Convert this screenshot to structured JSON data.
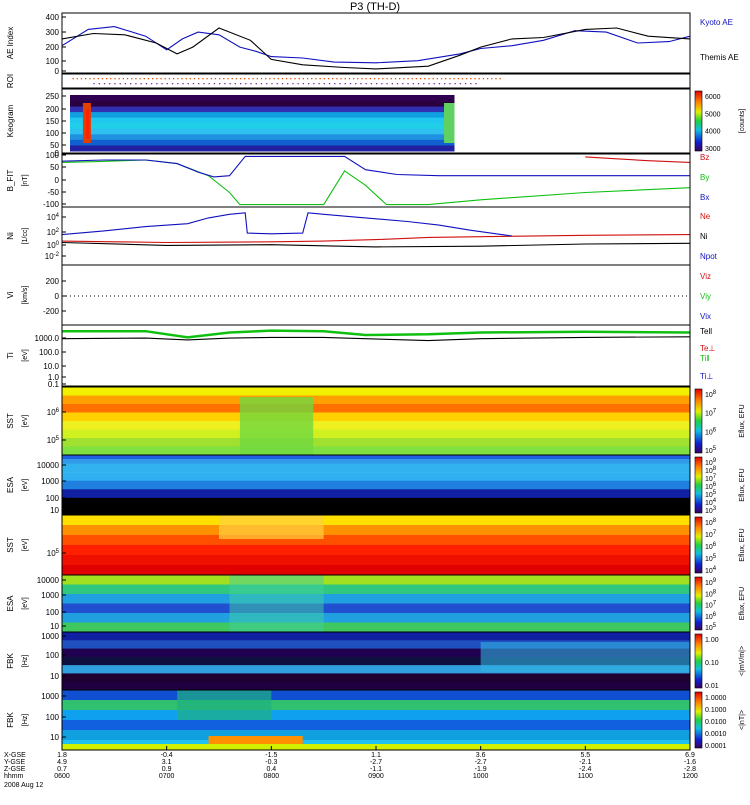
{
  "chart_data": {
    "type": "stacked-timeseries",
    "title": "P3 (TH-D)",
    "date_label": "2008 Aug 12",
    "time_axis": {
      "range_hours": [
        6,
        12
      ],
      "ticks": [
        "0600",
        "0700",
        "0800",
        "0900",
        "1000",
        "1100",
        "1200"
      ],
      "coord_rows": [
        {
          "label": "X-GSE",
          "values": [
            "1.8",
            "-0.4",
            "-1.5",
            "1.1",
            "3.6",
            "5.5",
            "6.9"
          ]
        },
        {
          "label": "Y-GSE",
          "values": [
            "4.9",
            "3.1",
            "-0.3",
            "-2.7",
            "-2.7",
            "-2.1",
            "-1.6"
          ]
        },
        {
          "label": "Z-GSE",
          "values": [
            "0.7",
            "0.9",
            "0.4",
            "-1.1",
            "-1.9",
            "-2.4",
            "-2.8"
          ]
        },
        {
          "label": "hhmm",
          "values": [
            "0600",
            "0700",
            "0800",
            "0900",
            "1000",
            "1100",
            "1200"
          ]
        }
      ]
    },
    "panels": [
      {
        "id": "ae",
        "ylabel": "AE Index",
        "yticks": [
          "400",
          "300",
          "200",
          "100",
          "0"
        ],
        "series": [
          {
            "name": "Kyoto AE",
            "color": "#1010c0",
            "t": [
              6.0,
              6.25,
              6.5,
              6.8,
              7.0,
              7.15,
              7.3,
              7.5,
              7.7,
              7.85,
              8.0,
              8.3,
              8.6,
              9.0,
              9.4,
              9.8,
              10.0,
              10.3,
              10.6,
              10.9,
              11.2,
              11.5,
              11.8,
              12.0
            ],
            "v": [
              180,
              300,
              320,
              250,
              150,
              230,
              280,
              260,
              170,
              140,
              100,
              90,
              60,
              55,
              70,
              120,
              160,
              180,
              220,
              290,
              280,
              200,
              210,
              250
            ]
          },
          {
            "name": "Themis AE",
            "color": "#000000",
            "t": [
              6.0,
              6.3,
              6.6,
              6.9,
              7.1,
              7.25,
              7.5,
              7.8,
              8.0,
              8.3,
              8.7,
              9.0,
              9.5,
              9.8,
              10.0,
              10.3,
              10.6,
              11.0,
              11.3,
              11.6,
              12.0
            ],
            "v": [
              230,
              270,
              260,
              200,
              120,
              170,
              310,
              220,
              80,
              40,
              20,
              10,
              30,
              110,
              170,
              230,
              240,
              300,
              310,
              250,
              230
            ]
          }
        ]
      },
      {
        "id": "roi",
        "ylabel": "ROI"
      },
      {
        "id": "keogram",
        "ylabel": "Keogram",
        "yticks": [
          "250",
          "200",
          "150",
          "100",
          "50",
          "0"
        ],
        "colorbar": {
          "label": "[counts]",
          "ticks": [
            "6000",
            "5000",
            "4000",
            "3000"
          ]
        }
      },
      {
        "id": "bfit",
        "ylabel": "B_FIT",
        "unit": "[nT]",
        "yticks": [
          "100",
          "50",
          "0",
          "-50",
          "-100"
        ],
        "series": [
          {
            "name": "Bz",
            "color": "#d01010",
            "t": [
              11.0,
              11.3,
              11.6,
              12.0
            ],
            "v": [
              98,
              90,
              82,
              75
            ]
          },
          {
            "name": "By",
            "color": "#10c010",
            "t": [
              6.0,
              6.3,
              6.8,
              7.1,
              7.4,
              7.6,
              7.7,
              8.5,
              8.7,
              8.9,
              9.1,
              9.5,
              10.0,
              11.0,
              12.0
            ],
            "v": [
              75,
              78,
              85,
              70,
              20,
              -50,
              -100,
              -100,
              40,
              -20,
              -100,
              -100,
              -80,
              -50,
              -30
            ]
          },
          {
            "name": "Bx",
            "color": "#1010c0",
            "t": [
              6.0,
              6.4,
              6.8,
              7.1,
              7.3,
              7.45,
              7.6,
              7.75,
              8.5,
              8.7,
              8.9,
              9.2,
              9.6,
              10.0,
              12.0
            ],
            "v": [
              80,
              85,
              85,
              70,
              35,
              15,
              20,
              100,
              100,
              100,
              45,
              25,
              20,
              20,
              20
            ]
          }
        ]
      },
      {
        "id": "ni",
        "ylabel": "Ni",
        "unit": "[1/cc]",
        "yticks": [
          "10^4",
          "10^2",
          "10^0",
          "10^-2"
        ],
        "series": [
          {
            "name": "Ne",
            "color": "#d01010",
            "t": [
              6.0,
              6.5,
              7.0,
              7.5,
              8.0,
              8.5,
              9.0,
              9.5,
              10.0,
              11.0,
              12.0
            ],
            "v": [
              0.3,
              0.2,
              0.1,
              0.15,
              0.2,
              0.3,
              0.5,
              0.8,
              0.9,
              1.1,
              1.2
            ]
          },
          {
            "name": "Ni",
            "color": "#1010c0",
            "t": [
              6.0,
              6.4,
              6.8,
              7.2,
              7.4,
              7.6,
              7.75,
              7.77,
              8.0,
              8.3,
              8.35,
              8.5,
              8.9,
              9.3,
              9.6,
              9.9,
              10.2,
              10.3
            ],
            "v": [
              1.2,
              1.7,
              2.3,
              2.7,
              3.5,
              4.0,
              4.2,
              1.4,
              1.3,
              1.4,
              4.2,
              4.0,
              3.5,
              3.0,
              2.5,
              1.8,
              1.2,
              1.0
            ]
          },
          {
            "name": "Npot",
            "color": "#000000",
            "t": [
              6.0,
              7.0,
              8.0,
              9.0,
              10.0,
              11.0,
              12.0
            ],
            "v": [
              0.1,
              -0.3,
              -0.2,
              -0.5,
              -0.4,
              -0.1,
              0.0
            ]
          }
        ]
      },
      {
        "id": "vi",
        "ylabel": "Vi",
        "unit": "[km/s]",
        "yticks": [
          "200",
          "0",
          "-200"
        ],
        "series": [
          {
            "name": "Viz",
            "color": "#d01010"
          },
          {
            "name": "Viy",
            "color": "#10c010"
          },
          {
            "name": "Vix",
            "color": "#1010c0"
          }
        ]
      },
      {
        "id": "ti",
        "ylabel": "Ti",
        "unit": "[eV]",
        "yticks": [
          "1000.0",
          "100.0",
          "10.0",
          "1.0",
          "0.1"
        ],
        "series": [
          {
            "name": "Tell",
            "color": "#000000",
            "t": [
              6.0,
              6.8,
              7.2,
              7.6,
              8.0,
              8.5,
              8.9,
              9.5,
              10.0,
              11.0,
              12.0
            ],
            "v": [
              2.5,
              2.55,
              2.4,
              2.55,
              2.6,
              2.6,
              2.5,
              2.35,
              2.5,
              2.6,
              2.65
            ]
          },
          {
            "name": "Te⊥",
            "color": "#d01010"
          },
          {
            "name": "Ti‖",
            "color": "#10c010",
            "t": [
              6.0,
              6.8,
              7.2,
              7.6,
              8.0,
              8.5,
              8.9,
              9.5,
              10.0,
              11.0,
              12.0
            ],
            "v": [
              3.1,
              3.1,
              2.6,
              3.0,
              3.15,
              3.1,
              2.8,
              2.85,
              3.0,
              3.05,
              3.0
            ]
          },
          {
            "name": "Ti⊥",
            "color": "#1010c0"
          }
        ]
      },
      {
        "id": "sst_i",
        "ylabel": "SST",
        "unit": "[eV]",
        "yticks": [
          "10^6",
          "10^5"
        ],
        "colorbar": {
          "label": "Eflux, EFU",
          "ticks": [
            "10^8",
            "10^7",
            "10^6",
            "10^5"
          ]
        }
      },
      {
        "id": "esa_i",
        "ylabel": "ESA",
        "unit": "[eV]",
        "yticks": [
          "10000",
          "1000",
          "100",
          "10"
        ],
        "colorbar": {
          "label": "Eflux, EFU",
          "ticks": [
            "10^9",
            "10^8",
            "10^7",
            "10^6",
            "10^5",
            "10^4",
            "10^3"
          ]
        }
      },
      {
        "id": "sst_e",
        "ylabel": "SST",
        "unit": "[eV]",
        "yticks": [
          "10^5"
        ],
        "colorbar": {
          "label": "Eflux, EFU",
          "ticks": [
            "10^8",
            "10^7",
            "10^6",
            "10^5",
            "10^4"
          ]
        }
      },
      {
        "id": "esa_e",
        "ylabel": "ESA",
        "unit": "[eV]",
        "yticks": [
          "10000",
          "1000",
          "100",
          "10"
        ],
        "colorbar": {
          "label": "Eflux, EFU",
          "ticks": [
            "10^9",
            "10^8",
            "10^7",
            "10^6",
            "10^5"
          ]
        }
      },
      {
        "id": "fbk_e",
        "ylabel": "FBK",
        "unit": "[Hz]",
        "yticks": [
          "1000",
          "100",
          "10"
        ],
        "colorbar": {
          "label": "<|mV/m|>",
          "ticks": [
            "1.00",
            "0.10",
            "0.01"
          ]
        }
      },
      {
        "id": "fbk_b",
        "ylabel": "FBK",
        "unit": "[Hz]",
        "yticks": [
          "1000",
          "100",
          "10"
        ],
        "colorbar": {
          "label": "<|nT|>",
          "ticks": [
            "1.0000",
            "0.1000",
            "0.0100",
            "0.0010",
            "0.0001"
          ]
        }
      }
    ],
    "legend_labels": {
      "ae": [
        "Kyoto AE",
        "Themis AE"
      ],
      "bfit": [
        "Bz",
        "By",
        "Bx"
      ],
      "ni": [
        "Ne",
        "Ni",
        "Npot"
      ],
      "vi": [
        "Viz",
        "Viy",
        "Vix"
      ],
      "ti": [
        "Tell",
        "Te⊥",
        "Ti‖",
        "Ti⊥"
      ]
    }
  }
}
